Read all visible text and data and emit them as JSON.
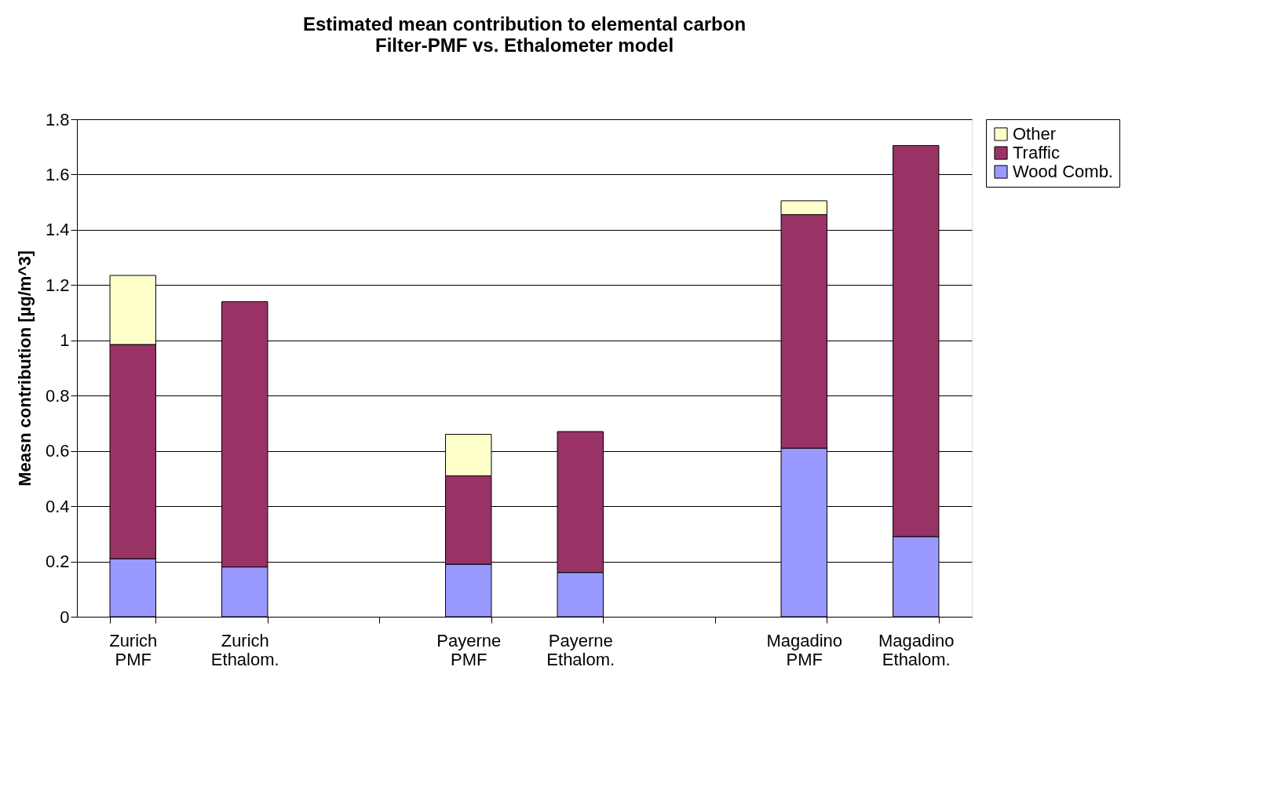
{
  "chart_data": {
    "type": "bar",
    "stacked": true,
    "title": "Estimated mean contribution to elemental carbon",
    "subtitle": "Filter-PMF vs. Ethalometer model",
    "ylabel": "Measn contribution [µg/m^3]",
    "categories": [
      "Zurich\nPMF",
      "Zurich\nEthalom.",
      null,
      "Payerne\nPMF",
      "Payerne\nEthalom.",
      null,
      "Magadino\nPMF",
      "Magadino\nEthalom."
    ],
    "series": [
      {
        "name": "Wood Comb.",
        "color": "#9999ff",
        "values": [
          0.21,
          0.18,
          null,
          0.19,
          0.16,
          null,
          0.61,
          0.29
        ]
      },
      {
        "name": "Traffic",
        "color": "#993366",
        "values": [
          0.775,
          0.96,
          null,
          0.32,
          0.51,
          null,
          0.845,
          1.415
        ]
      },
      {
        "name": "Other",
        "color": "#ffffcc",
        "values": [
          0.25,
          null,
          null,
          0.15,
          null,
          null,
          0.05,
          null
        ]
      }
    ],
    "ylim": [
      0,
      1.8
    ],
    "yticks": [
      0,
      0.2,
      0.4,
      0.6,
      0.8,
      1,
      1.2,
      1.4,
      1.6,
      1.8
    ],
    "grid": "y",
    "legend": "right"
  }
}
